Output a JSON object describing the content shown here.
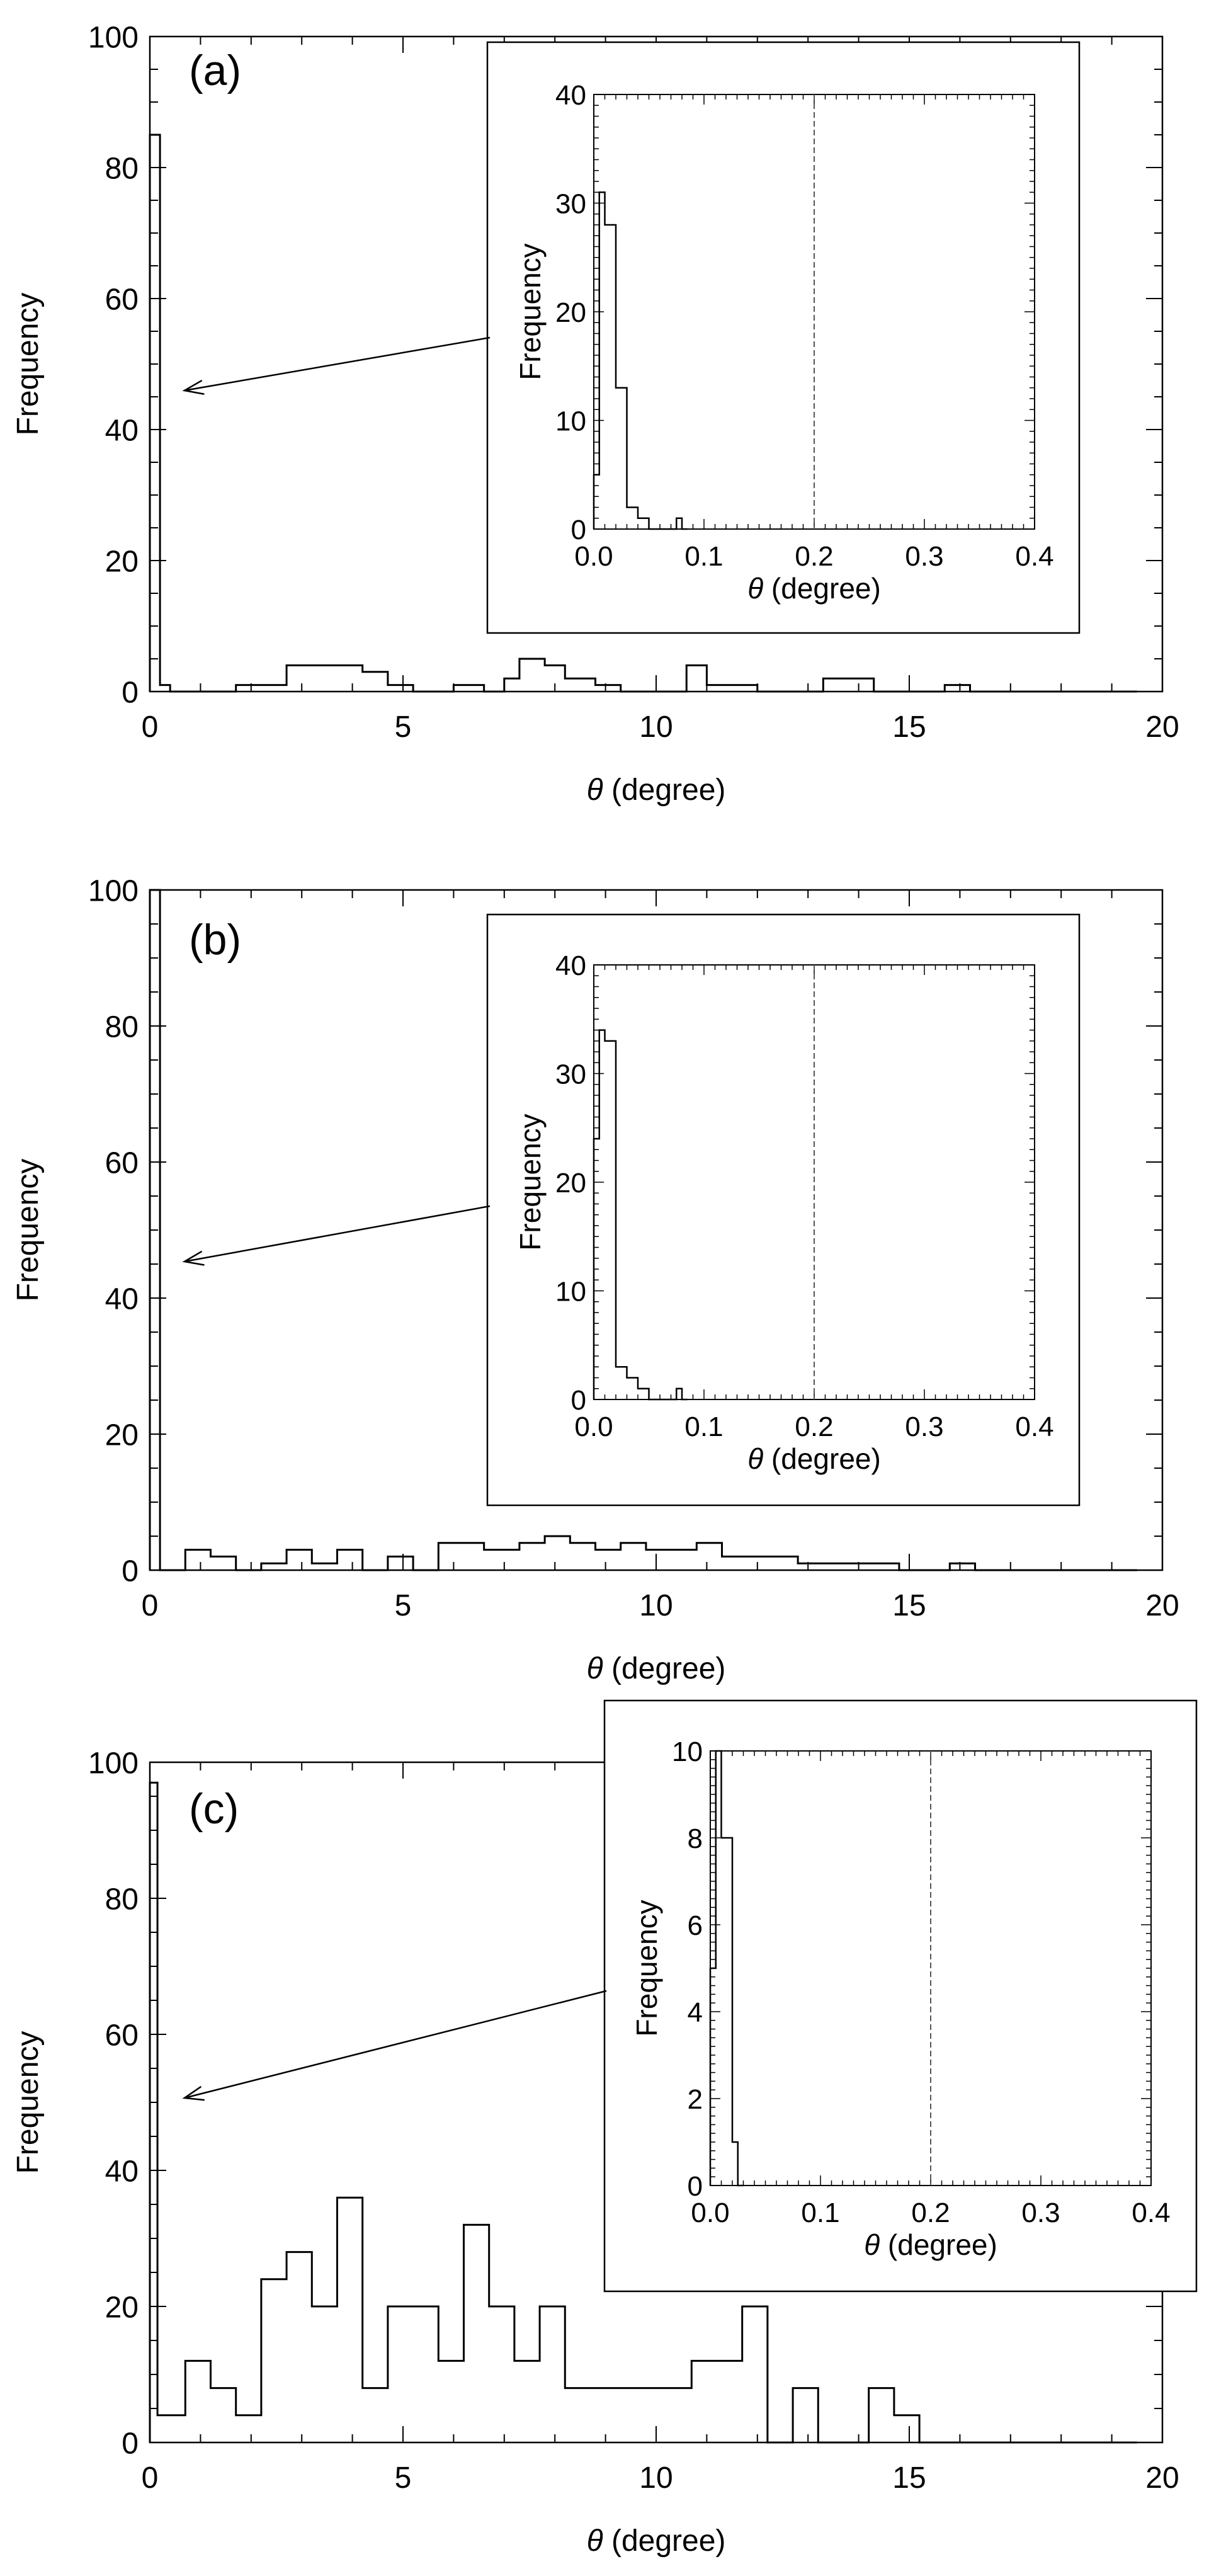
{
  "chart_data": [
    {
      "type": "histogram",
      "panel_label": "(a)",
      "xlabel_symbol": "θ",
      "xlabel_text": " (degree)",
      "ylabel": "Frequency",
      "xlim": [
        0,
        20
      ],
      "ylim": [
        0,
        100
      ],
      "xticks": [
        0,
        5,
        10,
        15,
        20
      ],
      "yticks": [
        0,
        20,
        40,
        60,
        80,
        100
      ],
      "edges": [
        0,
        0.2,
        0.4,
        1.7,
        2.7,
        4.2,
        4.7,
        5.2,
        6.0,
        6.6,
        7.0,
        7.3,
        7.8,
        8.2,
        8.8,
        9.3,
        10.0,
        10.6,
        11.0,
        12.0,
        13.3,
        14.3,
        15.7,
        16.2,
        19.5
      ],
      "values": [
        85,
        1,
        0,
        1,
        4,
        3,
        1,
        0,
        1,
        0,
        2,
        5,
        4,
        2,
        1,
        0,
        0,
        4,
        1,
        0,
        2,
        0,
        1,
        0
      ],
      "inset": {
        "ylabel": "Frequency",
        "xlabel_symbol": "θ",
        "xlabel_text": " (degree)",
        "xlim": [
          0,
          0.4
        ],
        "ylim": [
          0,
          40
        ],
        "xticks": [
          0.0,
          0.1,
          0.2,
          0.3,
          0.4
        ],
        "xtick_labels": [
          "0.0",
          "0.1",
          "0.2",
          "0.3",
          "0.4"
        ],
        "yticks": [
          0,
          10,
          20,
          30,
          40
        ],
        "dashed_line_x": 0.2,
        "edges": [
          0,
          0.005,
          0.01,
          0.02,
          0.03,
          0.04,
          0.05,
          0.06,
          0.075,
          0.08,
          0.085
        ],
        "values": [
          5,
          31,
          28,
          13,
          2,
          1,
          0,
          0,
          1,
          0
        ]
      }
    },
    {
      "type": "histogram",
      "panel_label": "(b)",
      "xlabel_symbol": "θ",
      "xlabel_text": " (degree)",
      "ylabel": "Frequency",
      "xlim": [
        0,
        20
      ],
      "ylim": [
        0,
        100
      ],
      "xticks": [
        0,
        5,
        10,
        15,
        20
      ],
      "yticks": [
        0,
        20,
        40,
        60,
        80,
        100
      ],
      "edges": [
        0,
        0.2,
        0.7,
        1.2,
        1.7,
        2.2,
        2.7,
        3.2,
        3.7,
        4.2,
        4.7,
        5.2,
        5.7,
        6.6,
        7.3,
        7.8,
        8.3,
        8.8,
        9.3,
        9.8,
        10.3,
        10.8,
        11.3,
        11.8,
        12.8,
        14.8,
        15.8,
        16.3,
        19.5
      ],
      "values": [
        100,
        0,
        3,
        2,
        0,
        1,
        3,
        1,
        3,
        0,
        2,
        0,
        4,
        3,
        4,
        5,
        4,
        3,
        4,
        3,
        3,
        4,
        2,
        2,
        1,
        0,
        1,
        0
      ],
      "inset": {
        "ylabel": "Frequency",
        "xlabel_symbol": "θ",
        "xlabel_text": " (degree)",
        "xlim": [
          0,
          0.4
        ],
        "ylim": [
          0,
          40
        ],
        "xticks": [
          0.0,
          0.1,
          0.2,
          0.3,
          0.4
        ],
        "xtick_labels": [
          "0.0",
          "0.1",
          "0.2",
          "0.3",
          "0.4"
        ],
        "yticks": [
          0,
          10,
          20,
          30,
          40
        ],
        "dashed_line_x": 0.2,
        "edges": [
          0,
          0.005,
          0.01,
          0.02,
          0.03,
          0.04,
          0.05,
          0.06,
          0.075,
          0.08,
          0.085
        ],
        "values": [
          24,
          34,
          33,
          3,
          2,
          1,
          0,
          0,
          1,
          0
        ]
      }
    },
    {
      "type": "histogram",
      "panel_label": "(c)",
      "xlabel_symbol": "θ",
      "xlabel_text": " (degree)",
      "ylabel": "Frequency",
      "xlim": [
        0,
        20
      ],
      "ylim": [
        0,
        100
      ],
      "xticks": [
        0,
        5,
        10,
        15,
        20
      ],
      "yticks": [
        0,
        20,
        40,
        60,
        80,
        100
      ],
      "edges": [
        0,
        0.15,
        0.7,
        1.2,
        1.7,
        2.2,
        2.7,
        3.2,
        3.7,
        4.2,
        4.7,
        5.7,
        6.2,
        6.7,
        7.2,
        7.7,
        8.2,
        10.7,
        11.7,
        12.2,
        12.7,
        13.2,
        14.2,
        14.7,
        15.2,
        19.5
      ],
      "values": [
        97,
        4,
        12,
        8,
        4,
        24,
        28,
        20,
        36,
        8,
        20,
        12,
        32,
        20,
        12,
        20,
        8,
        12,
        20,
        0,
        8,
        0,
        8,
        4,
        0
      ],
      "inset": {
        "ylabel": "Frequency",
        "xlabel_symbol": "θ",
        "xlabel_text": " (degree)",
        "xlim": [
          0,
          0.4
        ],
        "ylim": [
          0,
          10
        ],
        "xticks": [
          0.0,
          0.1,
          0.2,
          0.3,
          0.4
        ],
        "xtick_labels": [
          "0.0",
          "0.1",
          "0.2",
          "0.3",
          "0.4"
        ],
        "yticks": [
          0,
          2,
          4,
          6,
          8,
          10
        ],
        "dashed_line_x": 0.2,
        "edges": [
          0,
          0.005,
          0.01,
          0.02,
          0.025,
          0.03
        ],
        "values": [
          5,
          10,
          8,
          1,
          0
        ]
      }
    }
  ]
}
